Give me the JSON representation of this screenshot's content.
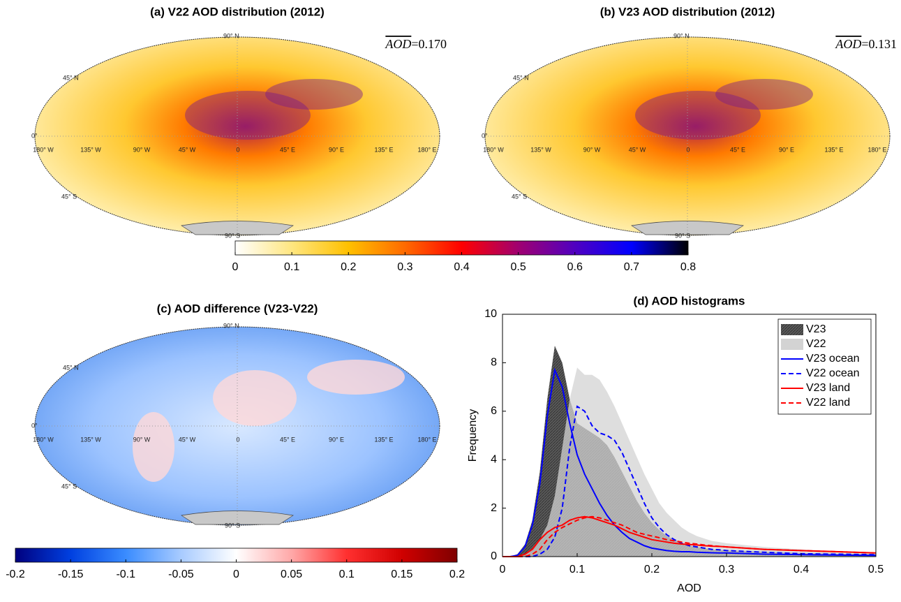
{
  "chart_data": [
    {
      "type": "map",
      "title": "(a) V22 AOD distribution (2012)",
      "mean_symbol": "AOD",
      "mean_text": "=0.170",
      "palette": "aod",
      "lat_labels": [
        "90° N",
        "45° N",
        "0°",
        "45° S",
        "90° S"
      ],
      "lon_labels": [
        "180° W",
        "135° W",
        "90° W",
        "45° W",
        "0",
        "45° E",
        "90° E",
        "135° E",
        "180° E"
      ]
    },
    {
      "type": "map",
      "title": "(b) V23 AOD distribution (2012)",
      "mean_symbol": "AOD",
      "mean_text": "=0.131",
      "palette": "aod",
      "lat_labels": [
        "90° N",
        "45° N",
        "0°",
        "45° S",
        "90° S"
      ],
      "lon_labels": [
        "180° W",
        "135° W",
        "90° W",
        "45° W",
        "0",
        "45° E",
        "90° E",
        "135° E",
        "180° E"
      ]
    },
    {
      "type": "colorbar",
      "lim": [
        0,
        0.8
      ],
      "ticks": [
        0,
        0.1,
        0.2,
        0.3,
        0.4,
        0.5,
        0.6,
        0.7,
        0.8
      ],
      "colors": [
        "#ffffff",
        "#ffe680",
        "#ffc000",
        "#ff6a00",
        "#ff0000",
        "#a00070",
        "#5000c0",
        "#0000ff",
        "#000000"
      ]
    },
    {
      "type": "map",
      "title": "(c) AOD difference (V23-V22)",
      "palette": "diff",
      "lat_labels": [
        "90° N",
        "45° N",
        "0°",
        "45° S",
        "90° S"
      ],
      "lon_labels": [
        "180° W",
        "135° W",
        "90° W",
        "45° W",
        "0",
        "45° E",
        "90° E",
        "135° E",
        "180° E"
      ]
    },
    {
      "type": "colorbar",
      "lim": [
        -0.2,
        0.2
      ],
      "ticks": [
        -0.2,
        -0.15,
        -0.1,
        -0.05,
        0,
        0.05,
        0.1,
        0.15,
        0.2
      ],
      "colors": [
        "#00007f",
        "#0040e0",
        "#3a8cff",
        "#a8cbff",
        "#ffffff",
        "#ffa8a8",
        "#ff3030",
        "#d00000",
        "#7f0000"
      ]
    },
    {
      "type": "line",
      "title": "(d) AOD histograms",
      "xlabel": "AOD",
      "ylabel": "Frequency",
      "xlim": [
        0,
        0.5
      ],
      "xticks": [
        0,
        0.1,
        0.2,
        0.3,
        0.4,
        0.5
      ],
      "ylim": [
        0,
        10
      ],
      "yticks": [
        0,
        2,
        4,
        6,
        8,
        10
      ],
      "legend": "top-right",
      "x": [
        0,
        0.01,
        0.02,
        0.03,
        0.04,
        0.05,
        0.06,
        0.07,
        0.08,
        0.09,
        0.1,
        0.11,
        0.12,
        0.13,
        0.14,
        0.15,
        0.16,
        0.17,
        0.18,
        0.19,
        0.2,
        0.21,
        0.22,
        0.23,
        0.24,
        0.25,
        0.26,
        0.27,
        0.28,
        0.29,
        0.3,
        0.35,
        0.4,
        0.45,
        0.5
      ],
      "series": [
        {
          "name": "V23",
          "color": "#5a5a5a",
          "fill": true,
          "values": [
            0,
            0,
            0.1,
            0.5,
            1.5,
            3.5,
            6.5,
            8.7,
            8.0,
            6.5,
            5.5,
            5.3,
            5.1,
            4.9,
            4.6,
            4.1,
            3.5,
            2.9,
            2.3,
            1.8,
            1.4,
            1.1,
            0.85,
            0.7,
            0.55,
            0.45,
            0.4,
            0.35,
            0.3,
            0.28,
            0.26,
            0.2,
            0.15,
            0.12,
            0.1
          ]
        },
        {
          "name": "V22",
          "color": "#d3d3d3",
          "fill": true,
          "values": [
            0,
            0,
            0,
            0.1,
            0.3,
            0.7,
            1.3,
            2.5,
            4.5,
            6.5,
            7.8,
            7.5,
            7.5,
            7.3,
            6.8,
            6.2,
            5.5,
            4.8,
            4.1,
            3.4,
            2.8,
            2.2,
            1.8,
            1.5,
            1.2,
            1.0,
            0.85,
            0.75,
            0.65,
            0.6,
            0.55,
            0.4,
            0.3,
            0.2,
            0.15
          ]
        },
        {
          "name": "V23 ocean",
          "color": "#0000ff",
          "dashed": false,
          "values": [
            0,
            0,
            0.05,
            0.4,
            1.3,
            3.0,
            5.8,
            7.7,
            7.0,
            5.5,
            4.2,
            3.4,
            2.8,
            2.2,
            1.7,
            1.3,
            1.0,
            0.75,
            0.6,
            0.45,
            0.35,
            0.3,
            0.25,
            0.22,
            0.2,
            0.2,
            0.18,
            0.17,
            0.16,
            0.15,
            0.15,
            0.1,
            0.08,
            0.06,
            0.05
          ]
        },
        {
          "name": "V22 ocean",
          "color": "#0000ff",
          "dashed": true,
          "values": [
            0,
            0,
            0,
            0,
            0,
            0.1,
            0.3,
            0.8,
            2.0,
            4.5,
            6.2,
            6.0,
            5.4,
            5.1,
            5.0,
            4.8,
            4.3,
            3.6,
            2.9,
            2.2,
            1.6,
            1.2,
            0.9,
            0.7,
            0.55,
            0.45,
            0.4,
            0.35,
            0.3,
            0.28,
            0.25,
            0.18,
            0.12,
            0.1,
            0.08
          ]
        },
        {
          "name": "V23 land",
          "color": "#ff0000",
          "dashed": false,
          "values": [
            0,
            0,
            0,
            0.1,
            0.3,
            0.7,
            1.0,
            1.2,
            1.3,
            1.5,
            1.6,
            1.65,
            1.6,
            1.5,
            1.4,
            1.3,
            1.15,
            1.0,
            0.9,
            0.8,
            0.7,
            0.65,
            0.6,
            0.55,
            0.52,
            0.5,
            0.48,
            0.45,
            0.43,
            0.42,
            0.4,
            0.3,
            0.25,
            0.2,
            0.15
          ]
        },
        {
          "name": "V22 land",
          "color": "#ff0000",
          "dashed": true,
          "values": [
            0,
            0,
            0,
            0,
            0.1,
            0.3,
            0.7,
            1.0,
            1.2,
            1.35,
            1.5,
            1.6,
            1.65,
            1.6,
            1.5,
            1.4,
            1.3,
            1.15,
            1.0,
            0.92,
            0.85,
            0.78,
            0.7,
            0.65,
            0.6,
            0.55,
            0.52,
            0.48,
            0.45,
            0.42,
            0.4,
            0.3,
            0.25,
            0.2,
            0.15
          ]
        }
      ]
    }
  ]
}
